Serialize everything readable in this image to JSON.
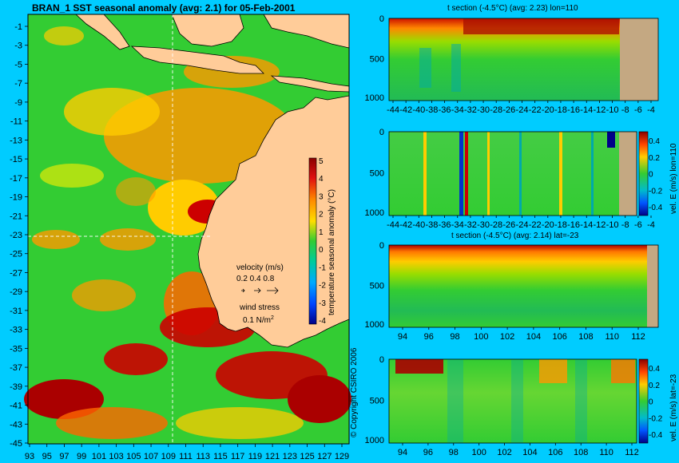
{
  "map": {
    "title": "BRAN_1 SST seasonal anomaly (avg: 2.1) for 05-Feb-2001",
    "lat_ticks": [
      "-1",
      "-3",
      "-5",
      "-7",
      "-9",
      "-11",
      "-13",
      "-15",
      "-17",
      "-19",
      "-21",
      "-23",
      "-25",
      "-27",
      "-29",
      "-31",
      "-33",
      "-35",
      "-37",
      "-39",
      "-41",
      "-43",
      "-45"
    ],
    "lon_ticks": [
      "93",
      "95",
      "97",
      "99",
      "101",
      "103",
      "105",
      "107",
      "109",
      "111",
      "113",
      "115",
      "117",
      "119",
      "121",
      "123",
      "125",
      "127",
      "129"
    ],
    "colorbar": {
      "label": "temperature seasonal anomaly (°C)",
      "ticks": [
        "5",
        "4",
        "3",
        "2",
        "1",
        "0",
        "-1",
        "-2",
        "-3",
        "-4"
      ]
    },
    "legend": {
      "velocity_title": "velocity (m/s)",
      "velocity_values": "0.2 0.4 0.8",
      "wind_title": "wind stress",
      "wind_value": "0.1 N/m",
      "wind_exp": "2"
    },
    "copyright": "© Copyright CSIRO 2006",
    "colors": {
      "ocean_base": "#33cc33",
      "land": "#ffcc99",
      "background": "#00ccff",
      "warm": "#cc0000"
    }
  },
  "panels": [
    {
      "title": "t section (-4.5°C) (avg: 2.23) lon=110",
      "y_ticks": [
        "0",
        "500",
        "1000"
      ],
      "x_ticks": [
        "-44",
        "-42",
        "-40",
        "-38",
        "-36",
        "-34",
        "-32",
        "-30",
        "-28",
        "-26",
        "-24",
        "-22",
        "-20",
        "-18",
        "-16",
        "-14",
        "-12",
        "-10",
        "-8",
        "-6",
        "-4"
      ],
      "colorbar_label": "",
      "colorbar_ticks": []
    },
    {
      "title": "",
      "y_ticks": [
        "0",
        "500",
        "1000"
      ],
      "x_ticks": [
        "-44",
        "-42",
        "-40",
        "-38",
        "-36",
        "-34",
        "-32",
        "-30",
        "-28",
        "-26",
        "-24",
        "-22",
        "-20",
        "-18",
        "-16",
        "-14",
        "-12",
        "-10",
        "-8",
        "-6",
        "-4"
      ],
      "colorbar_label": "vel. E (m/s) lon=110",
      "colorbar_ticks": [
        "0.4",
        "0.2",
        "0",
        "-0.2",
        "-0.4"
      ]
    },
    {
      "title": "t section (-4.5°C) (avg: 2.14) lat=-23",
      "y_ticks": [
        "0",
        "500",
        "1000"
      ],
      "x_ticks": [
        "94",
        "96",
        "98",
        "100",
        "102",
        "104",
        "106",
        "108",
        "110",
        "112"
      ],
      "colorbar_label": "",
      "colorbar_ticks": []
    },
    {
      "title": "",
      "y_ticks": [
        "0",
        "500",
        "1000"
      ],
      "x_ticks": [
        "94",
        "96",
        "98",
        "100",
        "102",
        "104",
        "106",
        "108",
        "110",
        "112"
      ],
      "colorbar_label": "vel. E (m/s) lat=-23",
      "colorbar_ticks": [
        "0.4",
        "0.2",
        "0",
        "-0.2",
        "-0.4"
      ]
    }
  ]
}
